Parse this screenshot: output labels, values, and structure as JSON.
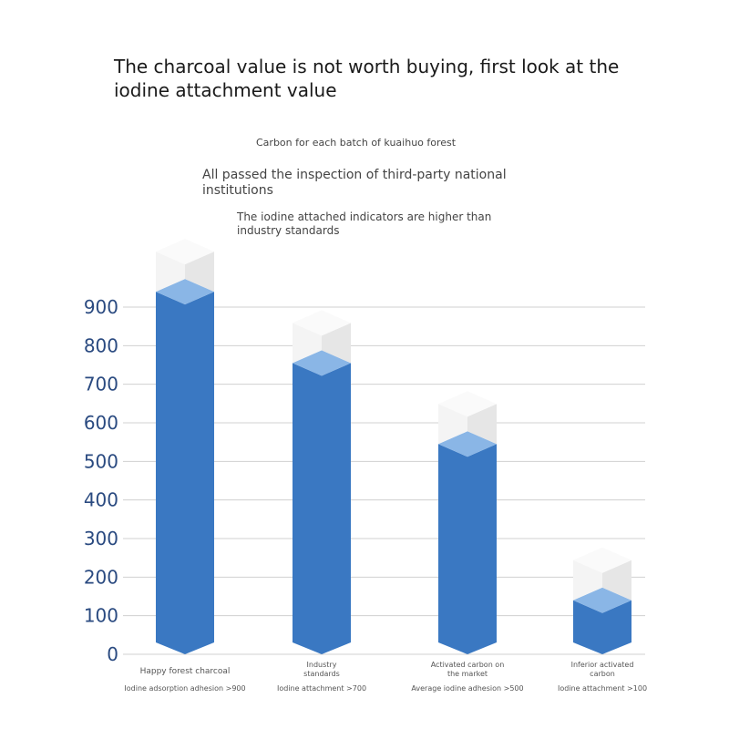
{
  "title": "The charcoal value is not worth buying, first look at the iodine attachment value",
  "subtitles": [
    "Carbon for each batch of kuaihuo forest",
    "All passed the inspection of third-party national institutions",
    "The iodine attached indicators are higher than industry standards"
  ],
  "colors": {
    "bar": "#3a78c2",
    "bar_top": "#8ab6e6",
    "cube": "#eeeeee",
    "axis_text": "#2a4a80",
    "grid": "#d0d0d0"
  },
  "chart_data": {
    "type": "bar",
    "title": "The charcoal value is not worth buying, first look at the iodine attachment value",
    "xlabel": "",
    "ylabel": "",
    "ylim": [
      0,
      900
    ],
    "yticks": [
      "0",
      "100",
      "200",
      "300",
      "400",
      "500",
      "600",
      "700",
      "800",
      "900"
    ],
    "grid": true,
    "categories": [
      {
        "name": "Happy forest charcoal",
        "name_lines": [
          "Happy forest charcoal"
        ],
        "note": "Iodine adsorption adhesion >900"
      },
      {
        "name": "Industry standards",
        "name_lines": [
          "Industry",
          "standards"
        ],
        "note": "Iodine attachment >700"
      },
      {
        "name": "Activated carbon on the market",
        "name_lines": [
          "Activated carbon on",
          "the market"
        ],
        "note": "Average iodine adhesion >500"
      },
      {
        "name": "Inferior activated carbon",
        "name_lines": [
          "Inferior activated",
          "carbon"
        ],
        "note": "Iodine attachment >100"
      }
    ],
    "values": [
      940,
      755,
      545,
      140
    ]
  }
}
